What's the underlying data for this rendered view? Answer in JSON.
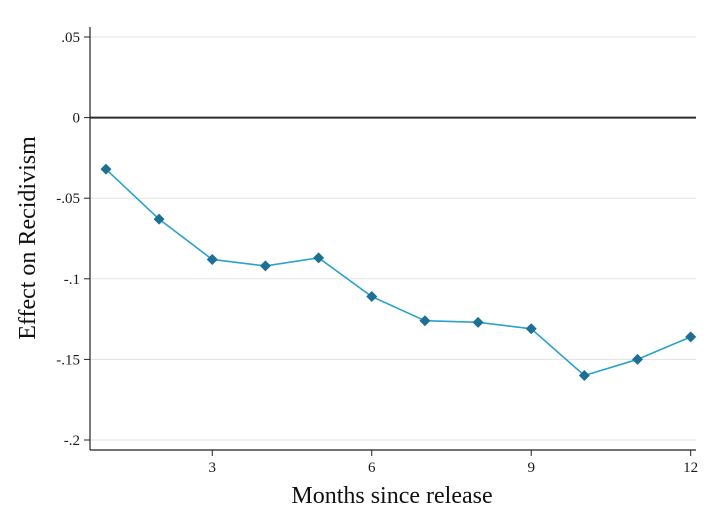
{
  "chart_data": {
    "type": "line",
    "title": "",
    "xlabel": "Months since release",
    "ylabel": "Effect on Recidivism",
    "xlim": [
      0.7,
      12.1
    ],
    "ylim": [
      -0.2,
      0.05
    ],
    "xticks": [
      3,
      6,
      9,
      12
    ],
    "xtick_labels": [
      "3",
      "6",
      "9",
      "12"
    ],
    "yticks": [
      0.05,
      0,
      -0.05,
      -0.1,
      -0.15,
      -0.2
    ],
    "ytick_labels": [
      ".05",
      "0",
      "-.05",
      "-.1",
      "-.15",
      "-.2"
    ],
    "grid": true,
    "reference_line": 0,
    "series": [
      {
        "color": "#2aa3c8",
        "marker_color": "#1d6f96",
        "marker": "diamond",
        "x": [
          1,
          2,
          3,
          4,
          5,
          6,
          7,
          8,
          9,
          10,
          11,
          12
        ],
        "values": [
          -0.032,
          -0.063,
          -0.088,
          -0.092,
          -0.087,
          -0.111,
          -0.126,
          -0.127,
          -0.131,
          -0.16,
          -0.15,
          -0.136
        ]
      }
    ]
  }
}
